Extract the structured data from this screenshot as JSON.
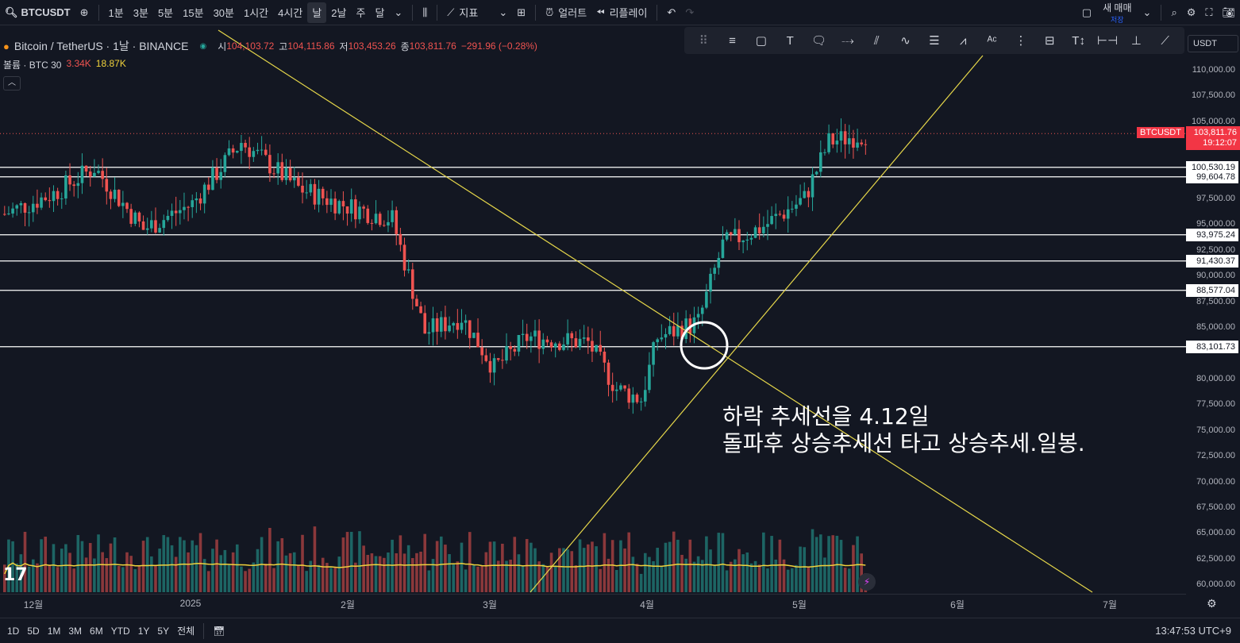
{
  "header": {
    "symbol": "BTCUSDT",
    "intervals": [
      "1분",
      "3분",
      "5분",
      "15분",
      "30분",
      "1시간",
      "4시간",
      "날",
      "2날",
      "주",
      "달"
    ],
    "active_interval": "날",
    "indicators_label": "지표",
    "alert_label": "얼러트",
    "replay_label": "리플레이",
    "trade_label": "새 매매",
    "save_label": "저장"
  },
  "legend": {
    "title": "Bitcoin / TetherUS · 1날 · BINANCE",
    "o_label": "시",
    "o": "104,103.72",
    "h_label": "고",
    "h": "104,115.86",
    "l_label": "저",
    "l": "103,453.26",
    "c_label": "종",
    "c": "103,811.76",
    "change": "−291.96 (−0.28%)"
  },
  "volume_legend": {
    "label": "볼륨 · BTC 30",
    "v1": "3.34K",
    "v2": "18.87K"
  },
  "currency": "USDT",
  "price_scale": [
    "110,000.00",
    "107,500.00",
    "105,000.00",
    "97,500.00",
    "95,000.00",
    "92,500.00",
    "90,000.00",
    "87,500.00",
    "85,000.00",
    "80,000.00",
    "77,500.00",
    "75,000.00",
    "72,500.00",
    "70,000.00",
    "67,500.00",
    "65,000.00",
    "62,500.00",
    "60,000.00"
  ],
  "levels": [
    "100,530.19",
    "99,604.78",
    "93,975.24",
    "91,430.37",
    "88,577.04",
    "83,101.73"
  ],
  "current_price": {
    "symbol": "BTCUSDT",
    "price": "103,811.76",
    "countdown": "19:12:07"
  },
  "time_axis": [
    "12월",
    "2025",
    "2월",
    "3월",
    "4월",
    "5월",
    "6월",
    "7월"
  ],
  "annotation": {
    "line1": "하락 추세선을 4.12일",
    "line2": "돌파후 상승추세선 타고 상승추세.일봉."
  },
  "bottom": {
    "ranges": [
      "1D",
      "5D",
      "1M",
      "3M",
      "6M",
      "YTD",
      "1Y",
      "5Y",
      "전체"
    ],
    "clock": "13:47:53 UTC+9"
  },
  "colors": {
    "up": "#26a69a",
    "down": "#ef5350",
    "trend": "#e6d74a",
    "vol_ma": "#f0d23c",
    "bg": "#131722"
  }
}
